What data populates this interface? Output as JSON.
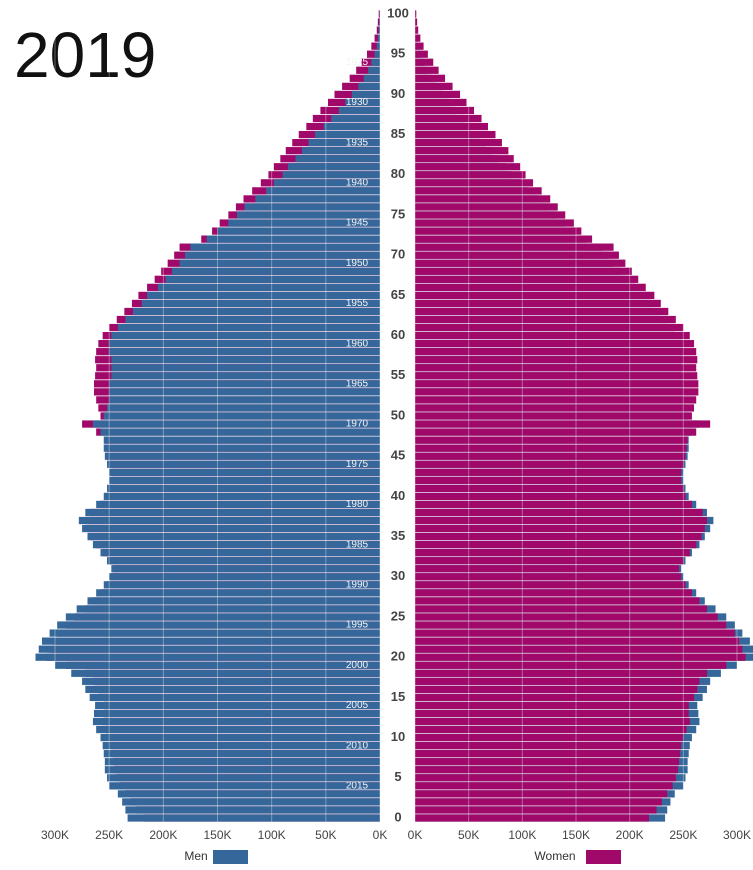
{
  "chart_data": {
    "type": "pyramid",
    "title": "2019",
    "categories": [
      0,
      null,
      null,
      null,
      null,
      5,
      null,
      null,
      null,
      null,
      10,
      null,
      null,
      null,
      null,
      15,
      null,
      null,
      null,
      null,
      20,
      null,
      null,
      null,
      null,
      25,
      null,
      null,
      null,
      null,
      30,
      null,
      null,
      null,
      null,
      35,
      null,
      null,
      null,
      null,
      40,
      null,
      null,
      null,
      null,
      45,
      null,
      null,
      null,
      null,
      50,
      null,
      null,
      null,
      null,
      55,
      null,
      null,
      null,
      null,
      60,
      null,
      null,
      null,
      null,
      65,
      null,
      null,
      null,
      null,
      70,
      null,
      null,
      null,
      null,
      75,
      null,
      null,
      null,
      null,
      80,
      null,
      null,
      null,
      null,
      85,
      null,
      null,
      null,
      null,
      90,
      null,
      null,
      null,
      null,
      95,
      null,
      null,
      null,
      null,
      100
    ],
    "birth_years": [
      null,
      null,
      null,
      null,
      2015,
      null,
      null,
      null,
      null,
      2010,
      null,
      null,
      null,
      null,
      2005,
      null,
      null,
      null,
      null,
      2000,
      null,
      null,
      null,
      null,
      1995,
      null,
      null,
      null,
      null,
      1990,
      null,
      null,
      null,
      null,
      1985,
      null,
      null,
      null,
      null,
      1980,
      null,
      null,
      null,
      null,
      1975,
      null,
      null,
      null,
      null,
      1970,
      null,
      null,
      null,
      null,
      1965,
      null,
      null,
      null,
      null,
      1960,
      null,
      null,
      null,
      null,
      1955,
      null,
      null,
      null,
      null,
      1950,
      null,
      null,
      null,
      null,
      1945,
      null,
      null,
      null,
      null,
      1940,
      null,
      null,
      null,
      null,
      1935,
      null,
      null,
      null,
      null,
      1930,
      null,
      null,
      null,
      null,
      1925,
      null,
      null,
      null,
      null,
      null,
      null
    ],
    "series": [
      {
        "name": "Men",
        "color": "#35679a",
        "side": "left",
        "values": [
          233,
          235,
          238,
          242,
          250,
          252,
          254,
          254,
          255,
          256,
          258,
          262,
          265,
          264,
          263,
          268,
          272,
          275,
          285,
          300,
          318,
          315,
          312,
          305,
          298,
          290,
          280,
          270,
          262,
          255,
          250,
          248,
          252,
          258,
          265,
          270,
          275,
          278,
          272,
          262,
          255,
          252,
          250,
          250,
          252,
          254,
          255,
          255,
          258,
          265,
          255,
          252,
          250,
          250,
          250,
          248,
          248,
          248,
          250,
          250,
          248,
          242,
          235,
          228,
          220,
          215,
          205,
          198,
          192,
          185,
          180,
          175,
          160,
          150,
          140,
          132,
          125,
          115,
          105,
          98,
          90,
          85,
          78,
          72,
          66,
          60,
          52,
          45,
          38,
          32,
          26,
          20,
          15,
          11,
          8,
          5,
          3,
          2,
          1.2,
          0.7,
          0.4
        ]
      },
      {
        "name": "Women",
        "color": "#a0086a",
        "side": "right",
        "values": [
          218,
          225,
          230,
          235,
          240,
          243,
          245,
          246,
          247,
          248,
          250,
          253,
          256,
          255,
          255,
          260,
          263,
          265,
          272,
          290,
          308,
          305,
          302,
          298,
          290,
          282,
          272,
          265,
          258,
          252,
          248,
          246,
          250,
          256,
          262,
          267,
          270,
          272,
          268,
          258,
          252,
          250,
          248,
          248,
          250,
          252,
          253,
          254,
          262,
          275,
          258,
          260,
          262,
          264,
          264,
          263,
          262,
          263,
          262,
          260,
          256,
          250,
          243,
          236,
          229,
          223,
          215,
          208,
          202,
          196,
          190,
          185,
          165,
          155,
          148,
          140,
          133,
          126,
          118,
          110,
          103,
          98,
          92,
          87,
          81,
          75,
          68,
          62,
          55,
          48,
          42,
          35,
          28,
          22,
          17,
          12,
          8,
          5,
          3,
          2,
          1.2
        ]
      }
    ],
    "xlim": [
      0,
      300
    ],
    "xticks": [
      {
        "value": 0,
        "label": "0K"
      },
      {
        "value": 50,
        "label": "50K"
      },
      {
        "value": 100,
        "label": "100K"
      },
      {
        "value": 150,
        "label": "150K"
      },
      {
        "value": 200,
        "label": "200K"
      },
      {
        "value": 250,
        "label": "250K"
      },
      {
        "value": 300,
        "label": "300K"
      }
    ],
    "grid": true
  }
}
